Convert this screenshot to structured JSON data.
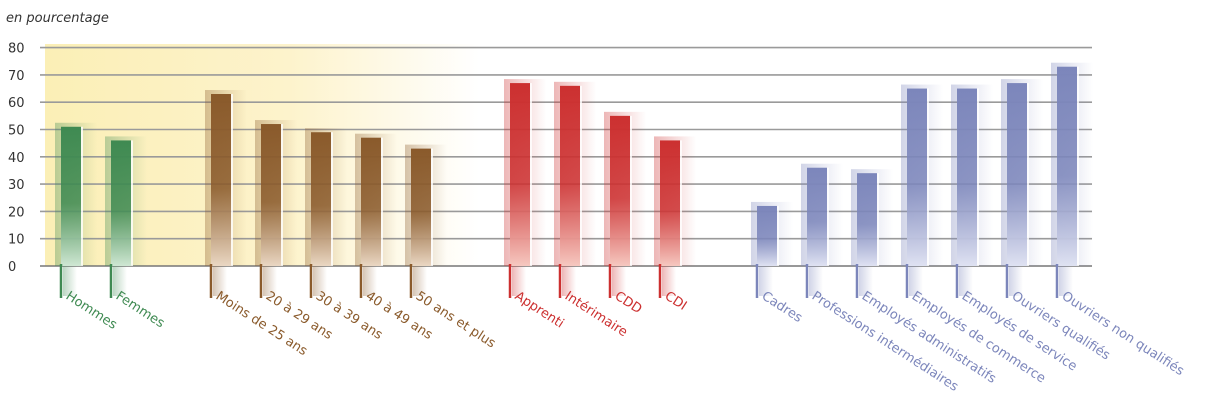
{
  "chart_data": {
    "type": "bar",
    "unit_label": "en pourcentage",
    "ylim": [
      0,
      80
    ],
    "yticks": [
      "0",
      "10",
      "20",
      "30",
      "40",
      "50",
      "60",
      "70",
      "80"
    ],
    "grid": true,
    "groups": [
      {
        "color": "#3f8a52",
        "light": "#cfe7d3",
        "categories": [
          "Hommes",
          "Femmes"
        ],
        "values": [
          51,
          46
        ]
      },
      {
        "color": "#8a5a2b",
        "light": "#ead7c3",
        "categories": [
          "Moins de 25 ans",
          "20 à 29 ans",
          "30 à 39 ans",
          "40 à 49 ans",
          "50 ans et plus"
        ],
        "values": [
          63,
          52,
          49,
          47,
          43
        ]
      },
      {
        "color": "#cc3030",
        "light": "#f6c8c0",
        "categories": [
          "Apprenti",
          "Intérimaire",
          "CDD",
          "CDI"
        ],
        "values": [
          67,
          66,
          55,
          46
        ]
      },
      {
        "color": "#7c86bb",
        "light": "#dfe2f2",
        "categories": [
          "Cadres",
          "Professions intermédiaires",
          "Employés administratifs",
          "Employés de commerce",
          "Employés de service",
          "Ouvriers qualifiés",
          "Ouvriers non qualifiés"
        ],
        "values": [
          22,
          36,
          34,
          65,
          65,
          67,
          73
        ]
      }
    ]
  }
}
